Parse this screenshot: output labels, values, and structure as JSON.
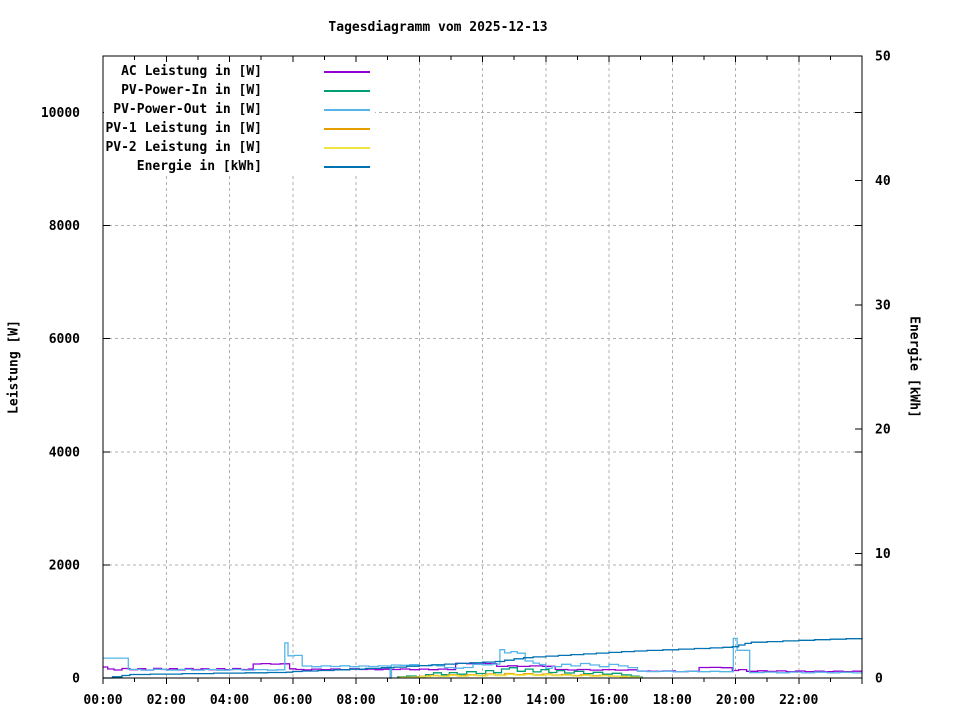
{
  "chart_data": {
    "type": "line",
    "title": "Tagesdiagramm vom 2025-12-13",
    "xlabel": "",
    "ylabel": "Leistung [W]",
    "y2label": "Energie [kWh]",
    "xlim_hours": [
      0,
      24
    ],
    "x_major_tick_hours": 2,
    "x_minor_tick_hours": 1,
    "x_tick_labels": [
      "00:00",
      "02:00",
      "04:00",
      "06:00",
      "08:00",
      "10:00",
      "12:00",
      "14:00",
      "16:00",
      "18:00",
      "20:00",
      "22:00"
    ],
    "ylim": [
      0,
      11000
    ],
    "y_ticks": [
      0,
      2000,
      4000,
      6000,
      8000,
      10000
    ],
    "y2lim": [
      0,
      50
    ],
    "y2_ticks": [
      0,
      10,
      20,
      30,
      40,
      50
    ],
    "grid": true,
    "grid_color": "#b0b0b0",
    "legend_position": "top-left",
    "series": [
      {
        "name": "AC Leistung in [W]",
        "color": "#9400d3",
        "axis": "y",
        "points": [
          [
            0,
            195
          ],
          [
            0.15,
            160
          ],
          [
            0.35,
            142
          ],
          [
            0.6,
            168
          ],
          [
            0.85,
            146
          ],
          [
            1.1,
            164
          ],
          [
            1.35,
            142
          ],
          [
            1.6,
            170
          ],
          [
            1.85,
            150
          ],
          [
            2.1,
            164
          ],
          [
            2.35,
            145
          ],
          [
            2.6,
            168
          ],
          [
            2.85,
            150
          ],
          [
            3.1,
            163
          ],
          [
            3.35,
            146
          ],
          [
            3.6,
            166
          ],
          [
            3.85,
            148
          ],
          [
            4.1,
            168
          ],
          [
            4.35,
            150
          ],
          [
            4.6,
            160
          ],
          [
            4.75,
            248
          ],
          [
            5.0,
            254
          ],
          [
            5.3,
            246
          ],
          [
            5.6,
            252
          ],
          [
            5.9,
            162
          ],
          [
            6.1,
            150
          ],
          [
            6.35,
            144
          ],
          [
            6.6,
            158
          ],
          [
            6.9,
            146
          ],
          [
            7.2,
            160
          ],
          [
            7.5,
            148
          ],
          [
            7.8,
            162
          ],
          [
            8.1,
            150
          ],
          [
            8.35,
            158
          ],
          [
            8.6,
            147
          ],
          [
            8.85,
            156
          ],
          [
            9.05,
            150
          ],
          [
            9.08,
            0
          ],
          [
            9.12,
            150
          ],
          [
            9.4,
            160
          ],
          [
            9.7,
            147
          ],
          [
            10.0,
            158
          ],
          [
            10.3,
            147
          ],
          [
            10.6,
            158
          ],
          [
            10.9,
            148
          ],
          [
            11.15,
            258
          ],
          [
            11.5,
            253
          ],
          [
            11.8,
            262
          ],
          [
            12.1,
            254
          ],
          [
            12.45,
            205
          ],
          [
            12.8,
            216
          ],
          [
            13.1,
            205
          ],
          [
            13.5,
            214
          ],
          [
            13.9,
            207
          ],
          [
            14.3,
            150
          ],
          [
            14.7,
            141
          ],
          [
            15.0,
            150
          ],
          [
            15.4,
            140
          ],
          [
            15.8,
            148
          ],
          [
            16.2,
            139
          ],
          [
            16.6,
            145
          ],
          [
            16.9,
            124
          ],
          [
            17.3,
            118
          ],
          [
            17.7,
            126
          ],
          [
            18.1,
            114
          ],
          [
            18.5,
            122
          ],
          [
            18.85,
            185
          ],
          [
            19.2,
            188
          ],
          [
            19.55,
            182
          ],
          [
            19.9,
            132
          ],
          [
            20.1,
            148
          ],
          [
            20.35,
            118
          ],
          [
            20.7,
            128
          ],
          [
            21.0,
            116
          ],
          [
            21.3,
            126
          ],
          [
            21.6,
            114
          ],
          [
            21.9,
            124
          ],
          [
            22.2,
            114
          ],
          [
            22.5,
            122
          ],
          [
            22.8,
            113
          ],
          [
            23.1,
            121
          ],
          [
            23.4,
            113
          ],
          [
            23.7,
            120
          ],
          [
            24,
            118
          ]
        ]
      },
      {
        "name": "PV-Power-In in [W]",
        "color": "#009e73",
        "axis": "y",
        "points": [
          [
            9.3,
            20
          ],
          [
            9.6,
            36
          ],
          [
            9.9,
            24
          ],
          [
            10.2,
            60
          ],
          [
            10.45,
            92
          ],
          [
            10.7,
            58
          ],
          [
            10.95,
            96
          ],
          [
            11.2,
            68
          ],
          [
            11.5,
            112
          ],
          [
            11.8,
            80
          ],
          [
            12.1,
            130
          ],
          [
            12.35,
            94
          ],
          [
            12.6,
            160
          ],
          [
            12.85,
            182
          ],
          [
            13.1,
            118
          ],
          [
            13.35,
            158
          ],
          [
            13.6,
            108
          ],
          [
            13.85,
            148
          ],
          [
            14.1,
            98
          ],
          [
            14.35,
            130
          ],
          [
            14.6,
            88
          ],
          [
            14.9,
            118
          ],
          [
            15.2,
            78
          ],
          [
            15.5,
            100
          ],
          [
            15.8,
            68
          ],
          [
            16.1,
            84
          ],
          [
            16.4,
            54
          ],
          [
            16.7,
            34
          ],
          [
            16.95,
            14
          ],
          [
            17.05,
            0
          ]
        ]
      },
      {
        "name": "PV-Power-Out in [W]",
        "color": "#56b4e9",
        "axis": "y",
        "points": [
          [
            0,
            352
          ],
          [
            0.8,
            152
          ],
          [
            1.2,
            140
          ],
          [
            1.6,
            154
          ],
          [
            2.0,
            140
          ],
          [
            2.4,
            152
          ],
          [
            2.8,
            139
          ],
          [
            3.2,
            150
          ],
          [
            3.6,
            138
          ],
          [
            4.0,
            150
          ],
          [
            4.4,
            140
          ],
          [
            4.8,
            148
          ],
          [
            5.2,
            138
          ],
          [
            5.5,
            145
          ],
          [
            5.75,
            620
          ],
          [
            5.85,
            392
          ],
          [
            6.05,
            400
          ],
          [
            6.3,
            212
          ],
          [
            6.6,
            200
          ],
          [
            6.9,
            214
          ],
          [
            7.2,
            204
          ],
          [
            7.5,
            216
          ],
          [
            7.8,
            200
          ],
          [
            8.1,
            212
          ],
          [
            8.4,
            204
          ],
          [
            8.7,
            214
          ],
          [
            9.0,
            208
          ],
          [
            9.08,
            0
          ],
          [
            9.12,
            230
          ],
          [
            9.4,
            224
          ],
          [
            9.7,
            236
          ],
          [
            10.0,
            220
          ],
          [
            10.3,
            230
          ],
          [
            10.55,
            214
          ],
          [
            10.8,
            184
          ],
          [
            11.1,
            174
          ],
          [
            11.4,
            186
          ],
          [
            11.7,
            240
          ],
          [
            12.0,
            234
          ],
          [
            12.3,
            246
          ],
          [
            12.55,
            500
          ],
          [
            12.7,
            444
          ],
          [
            12.9,
            466
          ],
          [
            13.1,
            438
          ],
          [
            13.35,
            300
          ],
          [
            13.6,
            264
          ],
          [
            13.8,
            238
          ],
          [
            14.0,
            170
          ],
          [
            14.2,
            202
          ],
          [
            14.5,
            242
          ],
          [
            14.8,
            214
          ],
          [
            15.1,
            256
          ],
          [
            15.4,
            230
          ],
          [
            15.7,
            200
          ],
          [
            16.0,
            240
          ],
          [
            16.3,
            214
          ],
          [
            16.6,
            184
          ],
          [
            16.9,
            120
          ],
          [
            17.2,
            114
          ],
          [
            17.6,
            121
          ],
          [
            18.0,
            111
          ],
          [
            18.4,
            118
          ],
          [
            18.8,
            111
          ],
          [
            19.2,
            118
          ],
          [
            19.5,
            112
          ],
          [
            19.93,
            700
          ],
          [
            20.05,
            490
          ],
          [
            20.45,
            96
          ],
          [
            20.9,
            104
          ],
          [
            21.3,
            92
          ],
          [
            21.7,
            104
          ],
          [
            22.1,
            90
          ],
          [
            22.5,
            102
          ],
          [
            22.9,
            92
          ],
          [
            23.3,
            100
          ],
          [
            23.7,
            90
          ],
          [
            24,
            95
          ]
        ]
      },
      {
        "name": "PV-1 Leistung in [W]",
        "color": "#e69f00",
        "axis": "y",
        "points": [
          [
            9.35,
            10
          ],
          [
            9.7,
            18
          ],
          [
            10.0,
            30
          ],
          [
            10.3,
            46
          ],
          [
            10.6,
            34
          ],
          [
            10.9,
            56
          ],
          [
            11.2,
            40
          ],
          [
            11.5,
            60
          ],
          [
            11.8,
            44
          ],
          [
            12.1,
            70
          ],
          [
            12.4,
            50
          ],
          [
            12.7,
            80
          ],
          [
            13.0,
            60
          ],
          [
            13.3,
            76
          ],
          [
            13.6,
            54
          ],
          [
            13.9,
            70
          ],
          [
            14.2,
            50
          ],
          [
            14.5,
            62
          ],
          [
            14.8,
            44
          ],
          [
            15.1,
            56
          ],
          [
            15.4,
            40
          ],
          [
            15.7,
            48
          ],
          [
            16.0,
            34
          ],
          [
            16.3,
            28
          ],
          [
            16.6,
            18
          ],
          [
            16.9,
            8
          ],
          [
            17.0,
            0
          ]
        ]
      },
      {
        "name": "PV-2 Leistung in [W]",
        "color": "#f0e442",
        "axis": "y",
        "points": [
          [
            9.4,
            8
          ],
          [
            9.75,
            14
          ],
          [
            10.05,
            24
          ],
          [
            10.35,
            38
          ],
          [
            10.65,
            28
          ],
          [
            10.95,
            46
          ],
          [
            11.25,
            32
          ],
          [
            11.55,
            50
          ],
          [
            11.85,
            38
          ],
          [
            12.15,
            58
          ],
          [
            12.45,
            42
          ],
          [
            12.75,
            66
          ],
          [
            13.05,
            50
          ],
          [
            13.35,
            62
          ],
          [
            13.65,
            44
          ],
          [
            13.95,
            58
          ],
          [
            14.25,
            42
          ],
          [
            14.55,
            52
          ],
          [
            14.85,
            36
          ],
          [
            15.15,
            46
          ],
          [
            15.45,
            32
          ],
          [
            15.75,
            40
          ],
          [
            16.05,
            28
          ],
          [
            16.35,
            22
          ],
          [
            16.65,
            14
          ],
          [
            16.95,
            5
          ],
          [
            17.0,
            0
          ]
        ]
      },
      {
        "name": "Energie in [kWh]",
        "color": "#0072b2",
        "axis": "y2",
        "points": [
          [
            0,
            0
          ],
          [
            0.3,
            0.1
          ],
          [
            0.6,
            0.2
          ],
          [
            0.85,
            0.28
          ],
          [
            1.5,
            0.31
          ],
          [
            2.5,
            0.35
          ],
          [
            3.5,
            0.39
          ],
          [
            4.5,
            0.42
          ],
          [
            5.2,
            0.44
          ],
          [
            5.8,
            0.47
          ],
          [
            6.0,
            0.52
          ],
          [
            6.3,
            0.56
          ],
          [
            6.8,
            0.6
          ],
          [
            7.3,
            0.66
          ],
          [
            7.8,
            0.71
          ],
          [
            8.3,
            0.77
          ],
          [
            8.8,
            0.83
          ],
          [
            9.2,
            0.88
          ],
          [
            9.6,
            0.95
          ],
          [
            10.0,
            1.0
          ],
          [
            10.4,
            1.06
          ],
          [
            10.8,
            1.12
          ],
          [
            11.2,
            1.17
          ],
          [
            11.6,
            1.22
          ],
          [
            12.0,
            1.28
          ],
          [
            12.4,
            1.33
          ],
          [
            12.7,
            1.43
          ],
          [
            13.0,
            1.54
          ],
          [
            13.3,
            1.63
          ],
          [
            13.6,
            1.7
          ],
          [
            14.0,
            1.76
          ],
          [
            14.4,
            1.82
          ],
          [
            14.8,
            1.88
          ],
          [
            15.2,
            1.94
          ],
          [
            15.6,
            2.0
          ],
          [
            16.0,
            2.06
          ],
          [
            16.4,
            2.12
          ],
          [
            16.8,
            2.17
          ],
          [
            17.2,
            2.22
          ],
          [
            17.7,
            2.27
          ],
          [
            18.2,
            2.32
          ],
          [
            18.7,
            2.37
          ],
          [
            19.2,
            2.42
          ],
          [
            19.6,
            2.47
          ],
          [
            19.9,
            2.52
          ],
          [
            20.1,
            2.65
          ],
          [
            20.3,
            2.78
          ],
          [
            20.5,
            2.88
          ],
          [
            21.0,
            2.93
          ],
          [
            21.5,
            2.98
          ],
          [
            22.0,
            3.03
          ],
          [
            22.5,
            3.08
          ],
          [
            23.0,
            3.12
          ],
          [
            23.5,
            3.16
          ],
          [
            24,
            3.2
          ]
        ]
      }
    ]
  }
}
